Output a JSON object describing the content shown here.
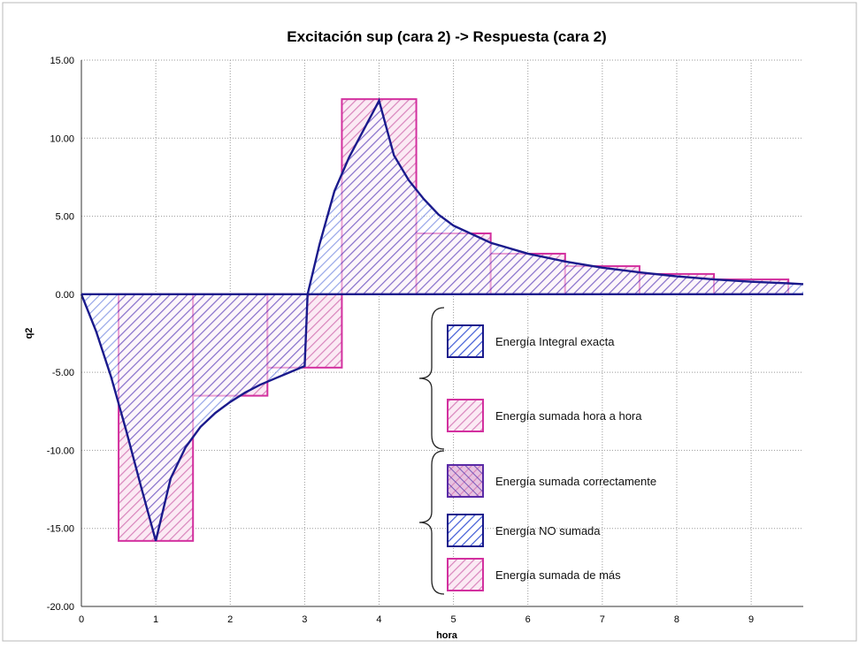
{
  "chart_data": {
    "type": "area",
    "title": "Excitación sup (cara 2)  ->  Respuesta (cara 2)",
    "xlabel": "hora",
    "ylabel": "q2",
    "xlim": [
      0,
      9.7
    ],
    "ylim": [
      -20,
      15
    ],
    "grid": true,
    "x_ticks": [
      "0",
      "1",
      "2",
      "3",
      "4",
      "5",
      "6",
      "7",
      "8",
      "9"
    ],
    "y_ticks": [
      "15.00",
      "10.00",
      "5.00",
      "0.00",
      "-5.00",
      "-10.00",
      "-15.00",
      "-20.00"
    ],
    "series": [
      {
        "name": "Energía Integral exacta",
        "style": "curve",
        "x": [
          0,
          0.2,
          0.4,
          0.6,
          0.8,
          1.0,
          1.2,
          1.4,
          1.6,
          1.8,
          2.0,
          2.2,
          2.4,
          2.6,
          2.8,
          3.0,
          3.04,
          3.2,
          3.4,
          3.6,
          3.8,
          4.0,
          4.2,
          4.4,
          4.6,
          4.8,
          5.0,
          5.5,
          6.0,
          6.5,
          7.0,
          7.5,
          8.0,
          8.5,
          9.0,
          9.5,
          9.7
        ],
        "y": [
          0,
          -2.4,
          -5.3,
          -8.7,
          -12.3,
          -15.8,
          -11.8,
          -9.8,
          -8.5,
          -7.6,
          -6.9,
          -6.3,
          -5.8,
          -5.4,
          -5.0,
          -4.6,
          0,
          3.2,
          6.6,
          8.8,
          10.6,
          12.4,
          8.9,
          7.3,
          6.1,
          5.1,
          4.4,
          3.3,
          2.6,
          2.1,
          1.7,
          1.4,
          1.15,
          0.95,
          0.8,
          0.7,
          0.65
        ]
      },
      {
        "name": "Energía sumada hora a hora",
        "style": "step",
        "bins": [
          {
            "x0": 0.5,
            "x1": 1.5,
            "y": -15.8
          },
          {
            "x0": 1.5,
            "x1": 2.5,
            "y": -6.5
          },
          {
            "x0": 2.5,
            "x1": 3.5,
            "y": -4.7
          },
          {
            "x0": 3.5,
            "x1": 4.5,
            "y": 12.5
          },
          {
            "x0": 4.5,
            "x1": 5.5,
            "y": 3.9
          },
          {
            "x0": 5.5,
            "x1": 6.5,
            "y": 2.6
          },
          {
            "x0": 6.5,
            "x1": 7.5,
            "y": 1.8
          },
          {
            "x0": 7.5,
            "x1": 8.5,
            "y": 1.3
          },
          {
            "x0": 8.5,
            "x1": 9.5,
            "y": 0.95
          }
        ]
      }
    ],
    "legend": {
      "position": "lower-center",
      "groups": [
        {
          "items": [
            {
              "label": "Energía Integral exacta",
              "pattern": "hatch-blue"
            },
            {
              "label": "Energía sumada hora a hora",
              "pattern": "hatch-pink"
            }
          ]
        },
        {
          "items": [
            {
              "label": "Energía sumada correctamente",
              "pattern": "cross"
            },
            {
              "label": "Energía NO sumada",
              "pattern": "hatch-blue"
            },
            {
              "label": "Energía sumada de más",
              "pattern": "hatch-pink"
            }
          ]
        }
      ]
    },
    "colors": {
      "curve_line": "#1a1a8c",
      "curve_hatch": "#3f5bd6",
      "step_line": "#d3309f",
      "step_hatch": "#d884bc",
      "grid": "#9a9a9a"
    }
  }
}
